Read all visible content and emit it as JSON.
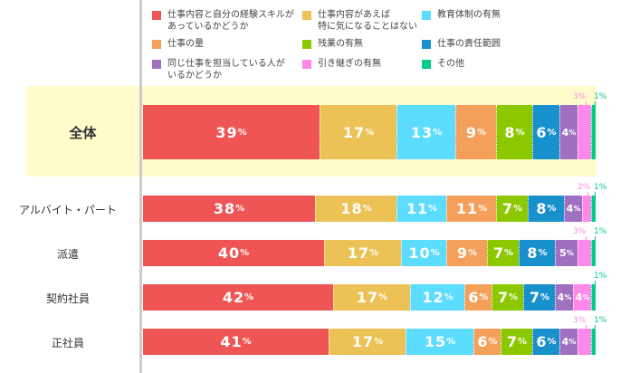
{
  "chart_data": {
    "type": "bar",
    "orientation": "horizontal",
    "stacked": true,
    "percent": true,
    "title": "",
    "xlabel": "",
    "ylabel": "",
    "xlim": [
      0,
      100
    ],
    "grid": false,
    "legend_position": "top",
    "categories": [
      "全体",
      "アルバイト・パート",
      "派遣",
      "契約社員",
      "正社員"
    ],
    "series": [
      {
        "name": "仕事内容と自分の経験スキルがあっているかどうか",
        "color": "#ef5555",
        "values": [
          39,
          38,
          40,
          42,
          41
        ]
      },
      {
        "name": "仕事内容があえば特に気になることはない",
        "color": "#ecc155",
        "values": [
          17,
          18,
          17,
          17,
          17
        ]
      },
      {
        "name": "教育体制の有無",
        "color": "#5cdcff",
        "values": [
          13,
          11,
          10,
          12,
          15
        ]
      },
      {
        "name": "仕事の量",
        "color": "#f5a05a",
        "values": [
          9,
          11,
          9,
          6,
          6
        ]
      },
      {
        "name": "残業の有無",
        "color": "#8cc800",
        "values": [
          8,
          7,
          7,
          7,
          7
        ]
      },
      {
        "name": "仕事の責任範囲",
        "color": "#1890cc",
        "values": [
          6,
          8,
          8,
          7,
          6
        ]
      },
      {
        "name": "同じ仕事を担当している人がいるかどうか",
        "color": "#a070c0",
        "values": [
          4,
          4,
          5,
          4,
          4
        ]
      },
      {
        "name": "引き継ぎの有無",
        "color": "#ff88e8",
        "values": [
          3,
          2,
          3,
          4,
          3
        ]
      },
      {
        "name": "その他",
        "color": "#00cc88",
        "values": [
          1,
          1,
          1,
          1,
          1
        ]
      }
    ],
    "highlighted_category": "全体"
  },
  "legend": {
    "items": [
      {
        "label": "仕事内容と自分の経験スキルが\nあっているかどうか",
        "color": "#ef5555"
      },
      {
        "label": "仕事内容があえば\n特に気になることはない",
        "color": "#ecc155"
      },
      {
        "label": "教育体制の有無",
        "color": "#5cdcff"
      },
      {
        "label": "仕事の量",
        "color": "#f5a05a"
      },
      {
        "label": "残業の有無",
        "color": "#8cc800"
      },
      {
        "label": "仕事の責任範囲",
        "color": "#1890cc"
      },
      {
        "label": "同じ仕事を担当している人が\nいるかどうか",
        "color": "#a070c0"
      },
      {
        "label": "引き継ぎの有無",
        "color": "#ff88e8"
      },
      {
        "label": "その他",
        "color": "#00cc88"
      }
    ]
  },
  "rows": [
    {
      "label": "全体",
      "segments": [
        {
          "value": 39,
          "num": "39",
          "pct": "%"
        },
        {
          "value": 17,
          "num": "17",
          "pct": "%"
        },
        {
          "value": 13,
          "num": "13",
          "pct": "%"
        },
        {
          "value": 9,
          "num": "9",
          "pct": "%"
        },
        {
          "value": 8,
          "num": "8",
          "pct": "%"
        },
        {
          "value": 6,
          "num": "6",
          "pct": "%"
        },
        {
          "value": 4,
          "num": "4",
          "pct": "%"
        },
        {
          "value": 3,
          "num": "3%",
          "pct": ""
        },
        {
          "value": 1,
          "num": "1%",
          "pct": ""
        }
      ]
    },
    {
      "label": "アルバイト・パート",
      "segments": [
        {
          "value": 38,
          "num": "38",
          "pct": "%"
        },
        {
          "value": 18,
          "num": "18",
          "pct": "%"
        },
        {
          "value": 11,
          "num": "11",
          "pct": "%"
        },
        {
          "value": 11,
          "num": "11",
          "pct": "%"
        },
        {
          "value": 7,
          "num": "7",
          "pct": "%"
        },
        {
          "value": 8,
          "num": "8",
          "pct": "%"
        },
        {
          "value": 4,
          "num": "4",
          "pct": "%"
        },
        {
          "value": 2,
          "num": "2%",
          "pct": ""
        },
        {
          "value": 1,
          "num": "1%",
          "pct": ""
        }
      ]
    },
    {
      "label": "派遣",
      "segments": [
        {
          "value": 40,
          "num": "40",
          "pct": "%"
        },
        {
          "value": 17,
          "num": "17",
          "pct": "%"
        },
        {
          "value": 10,
          "num": "10",
          "pct": "%"
        },
        {
          "value": 9,
          "num": "9",
          "pct": "%"
        },
        {
          "value": 7,
          "num": "7",
          "pct": "%"
        },
        {
          "value": 8,
          "num": "8",
          "pct": "%"
        },
        {
          "value": 5,
          "num": "5",
          "pct": "%"
        },
        {
          "value": 3,
          "num": "3%",
          "pct": ""
        },
        {
          "value": 1,
          "num": "1%",
          "pct": ""
        }
      ]
    },
    {
      "label": "契約社員",
      "segments": [
        {
          "value": 42,
          "num": "42",
          "pct": "%"
        },
        {
          "value": 17,
          "num": "17",
          "pct": "%"
        },
        {
          "value": 12,
          "num": "12",
          "pct": "%"
        },
        {
          "value": 6,
          "num": "6",
          "pct": "%"
        },
        {
          "value": 7,
          "num": "7",
          "pct": "%"
        },
        {
          "value": 7,
          "num": "7",
          "pct": "%"
        },
        {
          "value": 4,
          "num": "4",
          "pct": "%"
        },
        {
          "value": 4,
          "num": "4",
          "pct": "%"
        },
        {
          "value": 1,
          "num": "1%",
          "pct": ""
        }
      ]
    },
    {
      "label": "正社員",
      "segments": [
        {
          "value": 41,
          "num": "41",
          "pct": "%"
        },
        {
          "value": 17,
          "num": "17",
          "pct": "%"
        },
        {
          "value": 15,
          "num": "15",
          "pct": "%"
        },
        {
          "value": 6,
          "num": "6",
          "pct": "%"
        },
        {
          "value": 7,
          "num": "7",
          "pct": "%"
        },
        {
          "value": 6,
          "num": "6",
          "pct": "%"
        },
        {
          "value": 4,
          "num": "4",
          "pct": "%"
        },
        {
          "value": 3,
          "num": "3%",
          "pct": ""
        },
        {
          "value": 1,
          "num": "1%",
          "pct": ""
        }
      ]
    }
  ]
}
